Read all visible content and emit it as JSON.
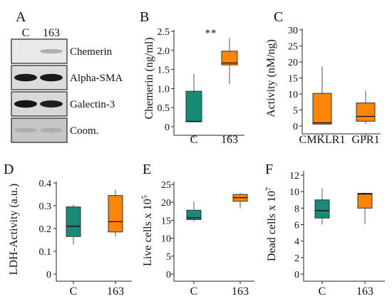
{
  "figure": {
    "blot": {
      "panel_label": "A",
      "lanes": [
        "C",
        "163"
      ],
      "bands": [
        {
          "label": "Chemerin",
          "bg": "#e9e9e9",
          "band_color": "#8a8a8a",
          "intensity": [
            0.05,
            0.55
          ]
        },
        {
          "label": "Alpha-SMA",
          "bg": "#dcdcdc",
          "band_color": "#1a1a1a",
          "intensity": [
            0.95,
            0.95
          ]
        },
        {
          "label": "Galectin-3",
          "bg": "#d8d8d8",
          "band_color": "#141414",
          "intensity": [
            0.95,
            0.9
          ]
        },
        {
          "label": "Coom.",
          "bg": "#c6c6c6",
          "band_color": "#9a9a9a",
          "intensity": [
            0.5,
            0.5
          ]
        }
      ]
    },
    "colors": {
      "teal": "#178b78",
      "orange": "#fb8509",
      "axis": "#222222"
    }
  },
  "chart_data": [
    {
      "panel": "B",
      "type": "box",
      "ylabel": "Chemerin (ng/ml)",
      "ylim": [
        0,
        2.5
      ],
      "yticks": [
        "0",
        "0.5",
        "1.0",
        "1.5",
        "2.0",
        "2.5"
      ],
      "categories": [
        "C",
        "163"
      ],
      "boxes": [
        {
          "min": 0.12,
          "q1": 0.13,
          "median": 0.14,
          "q3": 0.93,
          "max": 1.38,
          "color": "teal"
        },
        {
          "min": 1.12,
          "q1": 1.62,
          "median": 1.67,
          "q3": 1.98,
          "max": 2.32,
          "color": "orange"
        }
      ],
      "annotation": "**"
    },
    {
      "panel": "C",
      "type": "box",
      "ylabel": "Activity (nM/ng)",
      "ylim": [
        0,
        30
      ],
      "yticks": [
        "0",
        "5",
        "10",
        "15",
        "20",
        "25",
        "30"
      ],
      "categories": [
        "CMKLR1",
        "GPR1"
      ],
      "boxes": [
        {
          "min": 0.3,
          "q1": 0.6,
          "median": 1.0,
          "q3": 10.2,
          "max": 18.6,
          "color": "orange"
        },
        {
          "min": 0.6,
          "q1": 1.5,
          "median": 3.0,
          "q3": 7.2,
          "max": 11.0,
          "color": "orange"
        }
      ]
    },
    {
      "panel": "D",
      "type": "box",
      "ylabel": "LDH-Activity (a.u.)",
      "ylim": [
        0,
        0.4
      ],
      "yticks": [
        "0",
        "0.1",
        "0.2",
        "0.3",
        "0.4"
      ],
      "categories": [
        "C",
        "163"
      ],
      "boxes": [
        {
          "min": 0.13,
          "q1": 0.165,
          "median": 0.21,
          "q3": 0.295,
          "max": 0.305,
          "color": "teal"
        },
        {
          "min": 0.165,
          "q1": 0.185,
          "median": 0.23,
          "q3": 0.345,
          "max": 0.37,
          "color": "orange"
        }
      ]
    },
    {
      "panel": "E",
      "type": "box",
      "ylabel": "Live cells x 10",
      "ylabel_sup": "5",
      "ylim": [
        0,
        25
      ],
      "yticks": [
        "0",
        "5",
        "10",
        "15",
        "20",
        "25"
      ],
      "categories": [
        "C",
        "163"
      ],
      "boxes": [
        {
          "min": 14.7,
          "q1": 15.2,
          "median": 15.7,
          "q3": 17.8,
          "max": 20.2,
          "color": "teal"
        },
        {
          "min": 18.3,
          "q1": 20.3,
          "median": 21.3,
          "q3": 22.2,
          "max": 22.6,
          "color": "orange"
        }
      ]
    },
    {
      "panel": "F",
      "type": "box",
      "ylabel": "Dead cells x 10",
      "ylabel_sup": "7",
      "ylim": [
        0,
        12
      ],
      "yticks": [
        "0",
        "2",
        "4",
        "6",
        "8",
        "10",
        "12"
      ],
      "categories": [
        "C",
        "163"
      ],
      "boxes": [
        {
          "min": 6.0,
          "q1": 6.8,
          "median": 7.7,
          "q3": 9.0,
          "max": 10.4,
          "color": "teal"
        },
        {
          "min": 6.1,
          "q1": 8.0,
          "median": 9.7,
          "q3": 9.8,
          "max": 9.9,
          "color": "orange"
        }
      ]
    }
  ]
}
